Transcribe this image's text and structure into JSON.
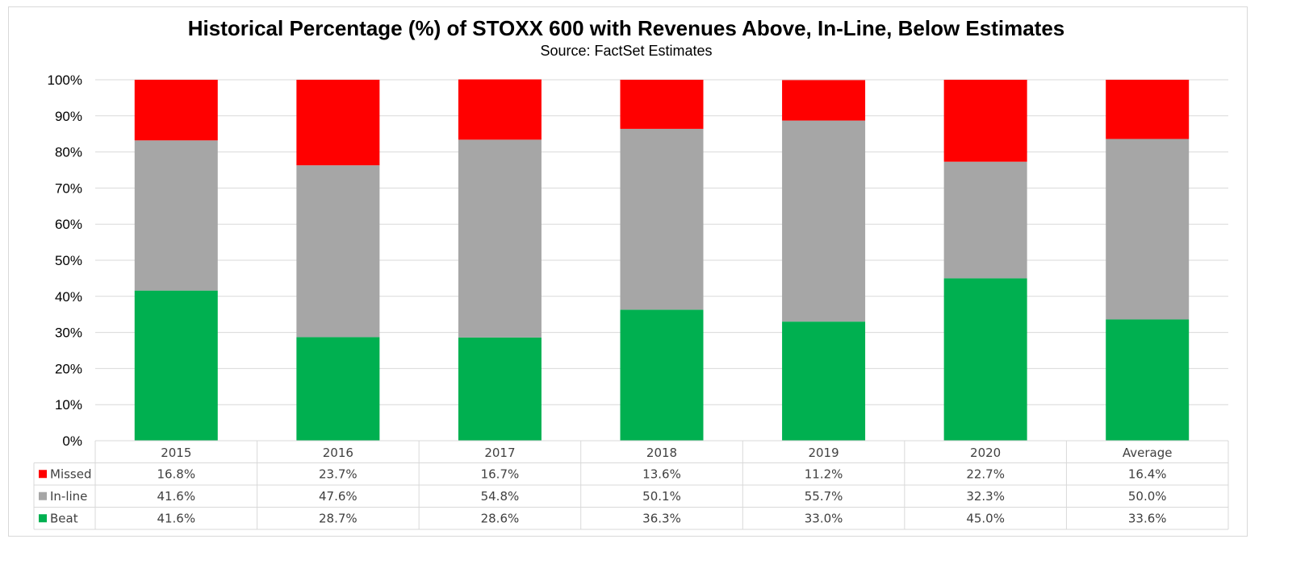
{
  "chart_data": {
    "type": "bar",
    "stacked": true,
    "title": "Historical Percentage (%) of STOXX 600 with Revenues Above, In-Line, Below Estimates",
    "subtitle": "Source: FactSet Estimates",
    "categories": [
      "2015",
      "2016",
      "2017",
      "2018",
      "2019",
      "2020",
      "Average"
    ],
    "series": [
      {
        "name": "Beat",
        "color": "#00b050",
        "values": [
          41.6,
          28.7,
          28.6,
          36.3,
          33.0,
          45.0,
          33.6
        ],
        "labels": [
          "41.6%",
          "28.7%",
          "28.6%",
          "36.3%",
          "33.0%",
          "45.0%",
          "33.6%"
        ]
      },
      {
        "name": "In-line",
        "color": "#a6a6a6",
        "values": [
          41.6,
          47.6,
          54.8,
          50.1,
          55.7,
          32.3,
          50.0
        ],
        "labels": [
          "41.6%",
          "47.6%",
          "54.8%",
          "50.1%",
          "55.7%",
          "32.3%",
          "50.0%"
        ]
      },
      {
        "name": "Missed",
        "color": "#ff0000",
        "values": [
          16.8,
          23.7,
          16.7,
          13.6,
          11.2,
          22.7,
          16.4
        ],
        "labels": [
          "16.8%",
          "23.7%",
          "16.7%",
          "13.6%",
          "11.2%",
          "22.7%",
          "16.4%"
        ]
      }
    ],
    "table_row_order": [
      "Missed",
      "In-line",
      "Beat"
    ],
    "ylim": [
      0,
      100
    ],
    "yticks": [
      "0%",
      "10%",
      "20%",
      "30%",
      "40%",
      "50%",
      "60%",
      "70%",
      "80%",
      "90%",
      "100%"
    ],
    "grid": true,
    "legend": "data-table"
  }
}
